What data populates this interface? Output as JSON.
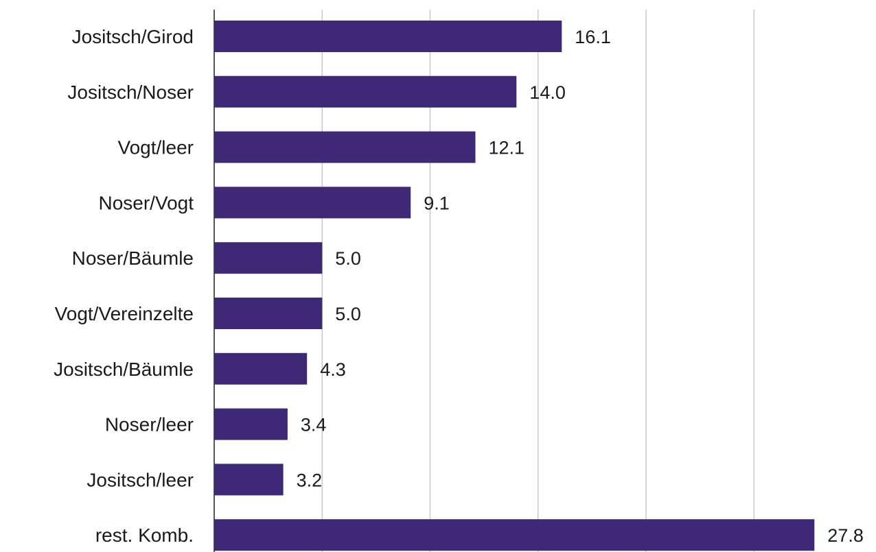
{
  "chart_data": {
    "type": "bar",
    "orientation": "horizontal",
    "categories": [
      "Jositsch/Girod",
      "Jositsch/Noser",
      "Vogt/leer",
      "Noser/Vogt",
      "Noser/Bäumle",
      "Vogt/Vereinzelte",
      "Jositsch/Bäumle",
      "Noser/leer",
      "Jositsch/leer",
      "rest. Komb."
    ],
    "values": [
      16.1,
      14.0,
      12.1,
      9.1,
      5.0,
      5.0,
      4.3,
      3.4,
      3.2,
      27.8
    ],
    "value_labels": [
      "16.1",
      "14.0",
      "12.1",
      "9.1",
      "5.0",
      "5.0",
      "4.3",
      "3.4",
      "3.2",
      "27.8"
    ],
    "xlim": [
      0,
      30
    ],
    "gridlines": [
      0,
      5,
      10,
      15,
      20,
      25
    ],
    "grid": true,
    "bar_color": "#3f2876",
    "title": "",
    "xlabel": "",
    "ylabel": ""
  }
}
